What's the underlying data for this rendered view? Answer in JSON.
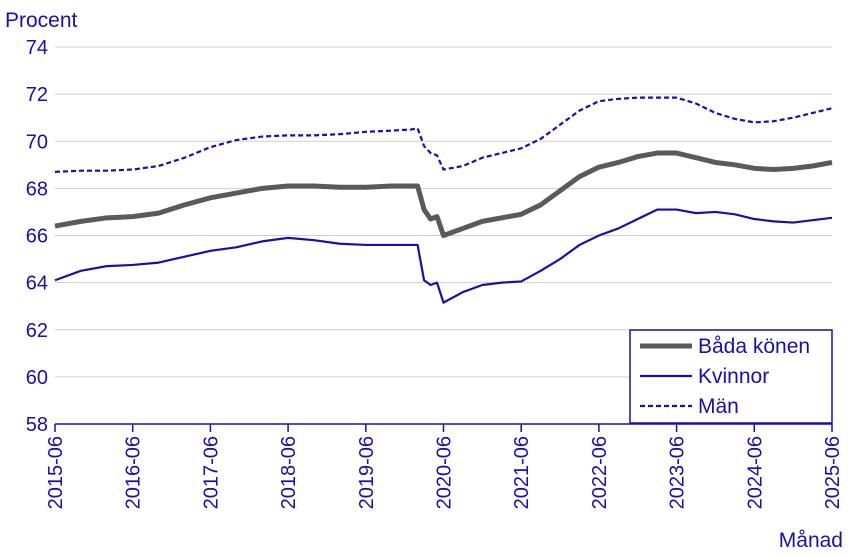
{
  "chart_data": {
    "type": "line",
    "title": "",
    "ylabel": "Procent",
    "xlabel": "Månad",
    "ylim": [
      58,
      74
    ],
    "yticks": [
      58,
      60,
      62,
      64,
      66,
      68,
      70,
      72,
      74
    ],
    "xticks": [
      "2015-06",
      "2016-06",
      "2017-06",
      "2018-06",
      "2019-06",
      "2020-06",
      "2021-06",
      "2022-06",
      "2023-06",
      "2024-06",
      "2025-06"
    ],
    "x_start": "2015-06",
    "x_end": "2025-06",
    "grid": true,
    "legend_position": "bottom-right",
    "series": [
      {
        "name": "Båda könen",
        "color": "#5a5a5a",
        "style": "solid-thick",
        "points": [
          [
            "2015-06",
            66.4
          ],
          [
            "2015-10",
            66.6
          ],
          [
            "2016-02",
            66.75
          ],
          [
            "2016-06",
            66.8
          ],
          [
            "2016-10",
            66.95
          ],
          [
            "2017-02",
            67.3
          ],
          [
            "2017-06",
            67.6
          ],
          [
            "2017-10",
            67.8
          ],
          [
            "2018-02",
            68.0
          ],
          [
            "2018-06",
            68.1
          ],
          [
            "2018-10",
            68.1
          ],
          [
            "2019-02",
            68.05
          ],
          [
            "2019-06",
            68.05
          ],
          [
            "2019-10",
            68.1
          ],
          [
            "2020-01",
            68.1
          ],
          [
            "2020-02",
            68.1
          ],
          [
            "2020-03",
            67.1
          ],
          [
            "2020-04",
            66.7
          ],
          [
            "2020-05",
            66.8
          ],
          [
            "2020-06",
            66.0
          ],
          [
            "2020-09",
            66.3
          ],
          [
            "2020-12",
            66.6
          ],
          [
            "2021-03",
            66.75
          ],
          [
            "2021-06",
            66.9
          ],
          [
            "2021-09",
            67.3
          ],
          [
            "2021-12",
            67.9
          ],
          [
            "2022-03",
            68.5
          ],
          [
            "2022-06",
            68.9
          ],
          [
            "2022-09",
            69.1
          ],
          [
            "2022-12",
            69.35
          ],
          [
            "2023-03",
            69.5
          ],
          [
            "2023-06",
            69.5
          ],
          [
            "2023-09",
            69.3
          ],
          [
            "2023-12",
            69.1
          ],
          [
            "2024-03",
            69.0
          ],
          [
            "2024-06",
            68.85
          ],
          [
            "2024-09",
            68.8
          ],
          [
            "2024-12",
            68.85
          ],
          [
            "2025-03",
            68.95
          ],
          [
            "2025-06",
            69.1
          ]
        ]
      },
      {
        "name": "Kvinnor",
        "color": "#1a0fa8",
        "style": "solid",
        "points": [
          [
            "2015-06",
            64.1
          ],
          [
            "2015-10",
            64.5
          ],
          [
            "2016-02",
            64.7
          ],
          [
            "2016-06",
            64.75
          ],
          [
            "2016-10",
            64.85
          ],
          [
            "2017-02",
            65.1
          ],
          [
            "2017-06",
            65.35
          ],
          [
            "2017-10",
            65.5
          ],
          [
            "2018-02",
            65.75
          ],
          [
            "2018-06",
            65.9
          ],
          [
            "2018-10",
            65.8
          ],
          [
            "2019-02",
            65.65
          ],
          [
            "2019-06",
            65.6
          ],
          [
            "2019-10",
            65.6
          ],
          [
            "2020-01",
            65.6
          ],
          [
            "2020-02",
            65.6
          ],
          [
            "2020-03",
            64.1
          ],
          [
            "2020-04",
            63.9
          ],
          [
            "2020-05",
            64.0
          ],
          [
            "2020-06",
            63.15
          ],
          [
            "2020-09",
            63.6
          ],
          [
            "2020-12",
            63.9
          ],
          [
            "2021-03",
            64.0
          ],
          [
            "2021-06",
            64.05
          ],
          [
            "2021-09",
            64.5
          ],
          [
            "2021-12",
            65.0
          ],
          [
            "2022-03",
            65.6
          ],
          [
            "2022-06",
            66.0
          ],
          [
            "2022-09",
            66.3
          ],
          [
            "2022-12",
            66.7
          ],
          [
            "2023-03",
            67.1
          ],
          [
            "2023-06",
            67.1
          ],
          [
            "2023-09",
            66.95
          ],
          [
            "2023-12",
            67.0
          ],
          [
            "2024-03",
            66.9
          ],
          [
            "2024-06",
            66.7
          ],
          [
            "2024-09",
            66.6
          ],
          [
            "2024-12",
            66.55
          ],
          [
            "2025-03",
            66.65
          ],
          [
            "2025-06",
            66.75
          ]
        ]
      },
      {
        "name": "Män",
        "color": "#1a0fa8",
        "style": "dashed",
        "points": [
          [
            "2015-06",
            68.7
          ],
          [
            "2015-10",
            68.75
          ],
          [
            "2016-02",
            68.75
          ],
          [
            "2016-06",
            68.8
          ],
          [
            "2016-10",
            68.95
          ],
          [
            "2017-02",
            69.3
          ],
          [
            "2017-06",
            69.75
          ],
          [
            "2017-10",
            70.05
          ],
          [
            "2018-02",
            70.2
          ],
          [
            "2018-06",
            70.25
          ],
          [
            "2018-10",
            70.25
          ],
          [
            "2019-02",
            70.3
          ],
          [
            "2019-06",
            70.4
          ],
          [
            "2019-10",
            70.45
          ],
          [
            "2020-01",
            70.5
          ],
          [
            "2020-02",
            70.55
          ],
          [
            "2020-03",
            69.8
          ],
          [
            "2020-04",
            69.5
          ],
          [
            "2020-05",
            69.4
          ],
          [
            "2020-06",
            68.8
          ],
          [
            "2020-09",
            68.95
          ],
          [
            "2020-12",
            69.3
          ],
          [
            "2021-03",
            69.5
          ],
          [
            "2021-06",
            69.7
          ],
          [
            "2021-09",
            70.1
          ],
          [
            "2021-12",
            70.7
          ],
          [
            "2022-03",
            71.3
          ],
          [
            "2022-06",
            71.7
          ],
          [
            "2022-09",
            71.8
          ],
          [
            "2022-12",
            71.85
          ],
          [
            "2023-03",
            71.85
          ],
          [
            "2023-06",
            71.85
          ],
          [
            "2023-09",
            71.6
          ],
          [
            "2023-12",
            71.2
          ],
          [
            "2024-03",
            70.95
          ],
          [
            "2024-06",
            70.8
          ],
          [
            "2024-09",
            70.85
          ],
          [
            "2024-12",
            71.0
          ],
          [
            "2025-03",
            71.2
          ],
          [
            "2025-06",
            71.4
          ]
        ]
      }
    ]
  }
}
